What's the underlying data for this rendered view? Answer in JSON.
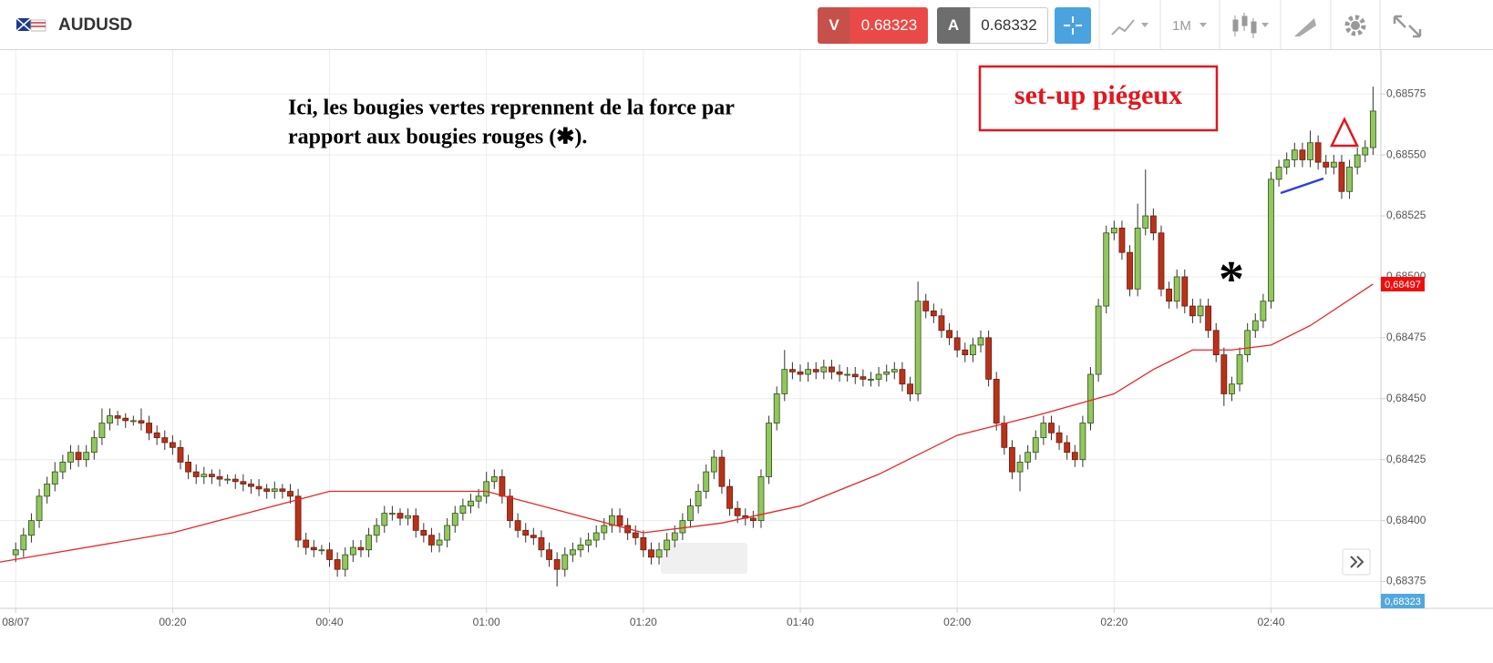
{
  "header": {
    "symbol": "AUDUSD",
    "sell": {
      "label": "V",
      "price": "0.68323"
    },
    "buy": {
      "label": "A",
      "price": "0.68332"
    },
    "timeframe": "1M"
  },
  "chart_data": {
    "type": "candlestick",
    "xlim": [
      -2,
      174
    ],
    "ylim": [
      0.68364,
      0.68593
    ],
    "xticks": [
      {
        "value": 0,
        "label": "08/07"
      },
      {
        "value": 20,
        "label": "00:20"
      },
      {
        "value": 40,
        "label": "00:40"
      },
      {
        "value": 60,
        "label": "01:00"
      },
      {
        "value": 80,
        "label": "01:20"
      },
      {
        "value": 100,
        "label": "01:40"
      },
      {
        "value": 120,
        "label": "02:00"
      },
      {
        "value": 140,
        "label": "02:20"
      },
      {
        "value": 160,
        "label": "02:40"
      }
    ],
    "yticks": [
      {
        "value": 0.68375,
        "label": "0,68375"
      },
      {
        "value": 0.684,
        "label": "0,68400"
      },
      {
        "value": 0.68425,
        "label": "0,68425"
      },
      {
        "value": 0.6845,
        "label": "0,68450"
      },
      {
        "value": 0.68475,
        "label": "0,68475"
      },
      {
        "value": 0.685,
        "label": "0,68500"
      },
      {
        "value": 0.68525,
        "label": "0,68525"
      },
      {
        "value": 0.6855,
        "label": "0,68550"
      },
      {
        "value": 0.68575,
        "label": "0,68575"
      }
    ],
    "grid": true,
    "up_color": "#93c65e",
    "down_color": "#b8321a",
    "x": [
      0,
      1,
      2,
      3,
      4,
      5,
      6,
      7,
      8,
      9,
      10,
      11,
      12,
      13,
      14,
      15,
      16,
      17,
      18,
      19,
      20,
      21,
      22,
      23,
      24,
      25,
      26,
      27,
      28,
      29,
      30,
      31,
      32,
      33,
      34,
      35,
      36,
      37,
      38,
      39,
      40,
      41,
      42,
      43,
      44,
      45,
      46,
      47,
      48,
      49,
      50,
      51,
      52,
      53,
      54,
      55,
      56,
      57,
      58,
      59,
      60,
      61,
      62,
      63,
      64,
      65,
      66,
      67,
      68,
      69,
      70,
      71,
      72,
      73,
      74,
      75,
      76,
      77,
      78,
      79,
      80,
      81,
      82,
      83,
      84,
      85,
      86,
      87,
      88,
      89,
      90,
      91,
      92,
      93,
      94,
      95,
      96,
      97,
      98,
      99,
      100,
      101,
      102,
      103,
      104,
      105,
      106,
      107,
      108,
      109,
      110,
      111,
      112,
      113,
      114,
      115,
      116,
      117,
      118,
      119,
      120,
      121,
      122,
      123,
      124,
      125,
      126,
      127,
      128,
      129,
      130,
      131,
      132,
      133,
      134,
      135,
      136,
      137,
      138,
      139,
      140,
      141,
      142,
      143,
      144,
      145,
      146,
      147,
      148,
      149,
      150,
      151,
      152,
      153,
      154,
      155,
      156,
      157,
      158,
      159,
      160,
      161,
      162,
      163,
      164,
      165,
      166,
      167,
      168,
      169,
      170,
      171,
      172,
      173
    ],
    "candles": [
      [
        0.68386,
        0.68391,
        0.68383,
        0.68388
      ],
      [
        0.68388,
        0.68397,
        0.68385,
        0.68394
      ],
      [
        0.68394,
        0.68403,
        0.68391,
        0.684
      ],
      [
        0.684,
        0.68413,
        0.68397,
        0.6841
      ],
      [
        0.6841,
        0.68418,
        0.68407,
        0.68415
      ],
      [
        0.68415,
        0.68424,
        0.68412,
        0.6842
      ],
      [
        0.6842,
        0.68427,
        0.68417,
        0.68424
      ],
      [
        0.68424,
        0.68431,
        0.68421,
        0.68428
      ],
      [
        0.68428,
        0.68431,
        0.68422,
        0.68425
      ],
      [
        0.68425,
        0.68431,
        0.68422,
        0.68428
      ],
      [
        0.68428,
        0.68437,
        0.68425,
        0.68434
      ],
      [
        0.68434,
        0.68446,
        0.68431,
        0.6844
      ],
      [
        0.6844,
        0.68446,
        0.68437,
        0.68443
      ],
      [
        0.68443,
        0.68445,
        0.68439,
        0.68442
      ],
      [
        0.68442,
        0.68444,
        0.68438,
        0.68441
      ],
      [
        0.68441,
        0.68443,
        0.68439,
        0.68441
      ],
      [
        0.68441,
        0.68446,
        0.68437,
        0.6844
      ],
      [
        0.6844,
        0.68443,
        0.68433,
        0.68436
      ],
      [
        0.68436,
        0.68439,
        0.68431,
        0.68434
      ],
      [
        0.68434,
        0.68437,
        0.68429,
        0.68432
      ],
      [
        0.68432,
        0.68435,
        0.68427,
        0.6843
      ],
      [
        0.6843,
        0.68433,
        0.68421,
        0.68424
      ],
      [
        0.68424,
        0.68427,
        0.68417,
        0.6842
      ],
      [
        0.6842,
        0.68423,
        0.68415,
        0.68418
      ],
      [
        0.68418,
        0.68422,
        0.68415,
        0.68419
      ],
      [
        0.68419,
        0.68421,
        0.68415,
        0.68418
      ],
      [
        0.68418,
        0.68421,
        0.68414,
        0.68417
      ],
      [
        0.68417,
        0.68419,
        0.68415,
        0.68417
      ],
      [
        0.68417,
        0.68419,
        0.68413,
        0.68416
      ],
      [
        0.68416,
        0.68419,
        0.68412,
        0.68415
      ],
      [
        0.68415,
        0.68417,
        0.68411,
        0.68414
      ],
      [
        0.68414,
        0.68417,
        0.6841,
        0.68413
      ],
      [
        0.68413,
        0.68415,
        0.68409,
        0.68412
      ],
      [
        0.68412,
        0.68416,
        0.68409,
        0.68413
      ],
      [
        0.68413,
        0.68415,
        0.68409,
        0.68412
      ],
      [
        0.68412,
        0.68415,
        0.68407,
        0.6841
      ],
      [
        0.6841,
        0.68413,
        0.68389,
        0.68392
      ],
      [
        0.68392,
        0.68395,
        0.68386,
        0.68389
      ],
      [
        0.68389,
        0.68392,
        0.68385,
        0.68388
      ],
      [
        0.68388,
        0.6839,
        0.68386,
        0.68388
      ],
      [
        0.68388,
        0.68391,
        0.68381,
        0.68384
      ],
      [
        0.68384,
        0.68387,
        0.68377,
        0.6838
      ],
      [
        0.6838,
        0.68389,
        0.68377,
        0.68386
      ],
      [
        0.68386,
        0.68392,
        0.68383,
        0.68389
      ],
      [
        0.68389,
        0.68392,
        0.68385,
        0.68388
      ],
      [
        0.68388,
        0.68397,
        0.68385,
        0.68394
      ],
      [
        0.68394,
        0.68401,
        0.68391,
        0.68398
      ],
      [
        0.68398,
        0.68406,
        0.68395,
        0.68403
      ],
      [
        0.68403,
        0.68406,
        0.684,
        0.68403
      ],
      [
        0.68403,
        0.68405,
        0.68398,
        0.68401
      ],
      [
        0.68401,
        0.68405,
        0.68398,
        0.68402
      ],
      [
        0.68402,
        0.68405,
        0.68393,
        0.68396
      ],
      [
        0.68396,
        0.68399,
        0.68391,
        0.68394
      ],
      [
        0.68394,
        0.68397,
        0.68387,
        0.6839
      ],
      [
        0.6839,
        0.68395,
        0.68387,
        0.68392
      ],
      [
        0.68392,
        0.68401,
        0.68389,
        0.68398
      ],
      [
        0.68398,
        0.68406,
        0.68395,
        0.68403
      ],
      [
        0.68403,
        0.68409,
        0.684,
        0.68406
      ],
      [
        0.68406,
        0.68411,
        0.68403,
        0.68408
      ],
      [
        0.68408,
        0.68413,
        0.68405,
        0.6841
      ],
      [
        0.6841,
        0.6842,
        0.68407,
        0.68416
      ],
      [
        0.68416,
        0.68421,
        0.68413,
        0.68418
      ],
      [
        0.68418,
        0.68421,
        0.68407,
        0.6841
      ],
      [
        0.6841,
        0.68413,
        0.68397,
        0.684
      ],
      [
        0.684,
        0.68403,
        0.68393,
        0.68396
      ],
      [
        0.68396,
        0.68399,
        0.68391,
        0.68394
      ],
      [
        0.68394,
        0.68397,
        0.6839,
        0.68393
      ],
      [
        0.68393,
        0.68396,
        0.68385,
        0.68388
      ],
      [
        0.68388,
        0.68391,
        0.68381,
        0.68384
      ],
      [
        0.68384,
        0.68387,
        0.68373,
        0.6838
      ],
      [
        0.6838,
        0.68389,
        0.68377,
        0.68386
      ],
      [
        0.68386,
        0.68391,
        0.68383,
        0.68388
      ],
      [
        0.68388,
        0.68393,
        0.68385,
        0.6839
      ],
      [
        0.6839,
        0.68395,
        0.68387,
        0.68392
      ],
      [
        0.68392,
        0.68398,
        0.68389,
        0.68395
      ],
      [
        0.68395,
        0.68401,
        0.68392,
        0.68398
      ],
      [
        0.68398,
        0.68405,
        0.68395,
        0.68402
      ],
      [
        0.68402,
        0.68405,
        0.68395,
        0.68398
      ],
      [
        0.68398,
        0.68401,
        0.68392,
        0.68395
      ],
      [
        0.68395,
        0.68398,
        0.6839,
        0.68393
      ],
      [
        0.68393,
        0.68396,
        0.68385,
        0.68388
      ],
      [
        0.68388,
        0.68391,
        0.68382,
        0.68385
      ],
      [
        0.68385,
        0.68391,
        0.68382,
        0.68388
      ],
      [
        0.68388,
        0.68395,
        0.68385,
        0.68392
      ],
      [
        0.68392,
        0.68398,
        0.68389,
        0.68395
      ],
      [
        0.68395,
        0.68403,
        0.68392,
        0.684
      ],
      [
        0.684,
        0.68409,
        0.68397,
        0.68406
      ],
      [
        0.68406,
        0.68415,
        0.68403,
        0.68412
      ],
      [
        0.68412,
        0.68423,
        0.68409,
        0.6842
      ],
      [
        0.6842,
        0.68429,
        0.68417,
        0.68426
      ],
      [
        0.68426,
        0.68429,
        0.68411,
        0.68414
      ],
      [
        0.68414,
        0.68417,
        0.68402,
        0.68405
      ],
      [
        0.68405,
        0.68408,
        0.68399,
        0.68402
      ],
      [
        0.68402,
        0.68405,
        0.68398,
        0.68401
      ],
      [
        0.68401,
        0.68404,
        0.68397,
        0.684
      ],
      [
        0.684,
        0.68421,
        0.68397,
        0.68418
      ],
      [
        0.68418,
        0.68443,
        0.68415,
        0.6844
      ],
      [
        0.6844,
        0.68455,
        0.68437,
        0.68452
      ],
      [
        0.68452,
        0.6847,
        0.68449,
        0.68462
      ],
      [
        0.68462,
        0.68465,
        0.68458,
        0.68461
      ],
      [
        0.68461,
        0.68464,
        0.68457,
        0.6846
      ],
      [
        0.6846,
        0.68465,
        0.68457,
        0.68462
      ],
      [
        0.68462,
        0.68465,
        0.68458,
        0.68461
      ],
      [
        0.68461,
        0.68466,
        0.68458,
        0.68463
      ],
      [
        0.68463,
        0.68466,
        0.68458,
        0.68461
      ],
      [
        0.68461,
        0.68464,
        0.68457,
        0.6846
      ],
      [
        0.6846,
        0.68463,
        0.68457,
        0.6846
      ],
      [
        0.6846,
        0.68463,
        0.68456,
        0.68459
      ],
      [
        0.68459,
        0.68462,
        0.68455,
        0.68458
      ],
      [
        0.68458,
        0.68461,
        0.68455,
        0.68458
      ],
      [
        0.68458,
        0.68463,
        0.68455,
        0.6846
      ],
      [
        0.6846,
        0.68464,
        0.68457,
        0.68461
      ],
      [
        0.68461,
        0.68465,
        0.68458,
        0.68462
      ],
      [
        0.68462,
        0.68465,
        0.68453,
        0.68456
      ],
      [
        0.68456,
        0.68459,
        0.68449,
        0.68452
      ],
      [
        0.68452,
        0.68498,
        0.68449,
        0.6849
      ],
      [
        0.6849,
        0.68493,
        0.68483,
        0.68486
      ],
      [
        0.68486,
        0.68489,
        0.68481,
        0.68484
      ],
      [
        0.68484,
        0.68487,
        0.68475,
        0.68478
      ],
      [
        0.68478,
        0.68481,
        0.68472,
        0.68475
      ],
      [
        0.68475,
        0.68478,
        0.68467,
        0.6847
      ],
      [
        0.6847,
        0.68473,
        0.68465,
        0.68468
      ],
      [
        0.68468,
        0.68475,
        0.68465,
        0.68472
      ],
      [
        0.68472,
        0.68478,
        0.68469,
        0.68475
      ],
      [
        0.68475,
        0.68478,
        0.68455,
        0.68458
      ],
      [
        0.68458,
        0.68461,
        0.68437,
        0.6844
      ],
      [
        0.6844,
        0.68443,
        0.68427,
        0.6843
      ],
      [
        0.6843,
        0.68433,
        0.68417,
        0.6842
      ],
      [
        0.6842,
        0.68427,
        0.68412,
        0.68424
      ],
      [
        0.68424,
        0.68431,
        0.68421,
        0.68428
      ],
      [
        0.68428,
        0.68437,
        0.68425,
        0.68434
      ],
      [
        0.68434,
        0.68443,
        0.68431,
        0.6844
      ],
      [
        0.6844,
        0.68443,
        0.68433,
        0.68436
      ],
      [
        0.68436,
        0.68439,
        0.68429,
        0.68432
      ],
      [
        0.68432,
        0.68435,
        0.68425,
        0.68428
      ],
      [
        0.68428,
        0.68431,
        0.68422,
        0.68425
      ],
      [
        0.68425,
        0.68443,
        0.68422,
        0.6844
      ],
      [
        0.6844,
        0.68463,
        0.68437,
        0.6846
      ],
      [
        0.6846,
        0.68491,
        0.68457,
        0.68488
      ],
      [
        0.68488,
        0.68521,
        0.68485,
        0.68518
      ],
      [
        0.68518,
        0.68523,
        0.68515,
        0.6852
      ],
      [
        0.6852,
        0.68523,
        0.68507,
        0.6851
      ],
      [
        0.6851,
        0.68513,
        0.68492,
        0.68495
      ],
      [
        0.68495,
        0.6853,
        0.68492,
        0.6852
      ],
      [
        0.6852,
        0.68544,
        0.68517,
        0.68525
      ],
      [
        0.68525,
        0.68528,
        0.68515,
        0.68518
      ],
      [
        0.68518,
        0.68521,
        0.68492,
        0.68495
      ],
      [
        0.68495,
        0.68498,
        0.68487,
        0.6849
      ],
      [
        0.6849,
        0.68503,
        0.68487,
        0.685
      ],
      [
        0.685,
        0.68503,
        0.68485,
        0.68488
      ],
      [
        0.68488,
        0.68491,
        0.68481,
        0.68484
      ],
      [
        0.68484,
        0.68491,
        0.68481,
        0.68488
      ],
      [
        0.68488,
        0.68491,
        0.68475,
        0.68478
      ],
      [
        0.68478,
        0.68481,
        0.68465,
        0.68468
      ],
      [
        0.68468,
        0.68471,
        0.68447,
        0.68452
      ],
      [
        0.68452,
        0.68459,
        0.68449,
        0.68456
      ],
      [
        0.68456,
        0.68471,
        0.68453,
        0.68468
      ],
      [
        0.68468,
        0.68481,
        0.68465,
        0.68478
      ],
      [
        0.68478,
        0.68485,
        0.68475,
        0.68482
      ],
      [
        0.68482,
        0.68493,
        0.68479,
        0.6849
      ],
      [
        0.6849,
        0.68543,
        0.68487,
        0.6854
      ],
      [
        0.6854,
        0.68548,
        0.68537,
        0.68545
      ],
      [
        0.68545,
        0.68551,
        0.68542,
        0.68548
      ],
      [
        0.68548,
        0.68555,
        0.68545,
        0.68552
      ],
      [
        0.68552,
        0.68555,
        0.68545,
        0.68548
      ],
      [
        0.68548,
        0.6856,
        0.68545,
        0.68555
      ],
      [
        0.68555,
        0.68558,
        0.68544,
        0.68547
      ],
      [
        0.68547,
        0.6855,
        0.68542,
        0.68545
      ],
      [
        0.68545,
        0.6855,
        0.68542,
        0.68547
      ],
      [
        0.68547,
        0.6855,
        0.68532,
        0.68535
      ],
      [
        0.68535,
        0.68548,
        0.68532,
        0.68545
      ],
      [
        0.68545,
        0.68553,
        0.68542,
        0.6855
      ],
      [
        0.6855,
        0.68556,
        0.68547,
        0.68553
      ],
      [
        0.68553,
        0.68578,
        0.6855,
        0.68568
      ]
    ],
    "ma": {
      "color": "#e8262a",
      "x": [
        -2,
        20,
        40,
        60,
        80,
        90,
        100,
        110,
        120,
        130,
        140,
        145,
        150,
        155,
        160,
        165,
        173
      ],
      "values": [
        0.68383,
        0.68395,
        0.68412,
        0.68412,
        0.68395,
        0.68399,
        0.68406,
        0.68419,
        0.68435,
        0.68443,
        0.68452,
        0.68462,
        0.6847,
        0.6847,
        0.68472,
        0.6848,
        0.68497
      ]
    },
    "price_tags": [
      {
        "value": 0.68497,
        "label": "0,68497",
        "color": "#f20d0d"
      },
      {
        "value": 0.68323,
        "label": "0,68323",
        "color": "#52a8dd"
      }
    ],
    "annotations": {
      "note": [
        "Ici, les bougies vertes reprennent de la force par",
        "rapport aux bougies rouges (✱)."
      ],
      "setup": "set-up piégeux",
      "star": "*"
    }
  }
}
